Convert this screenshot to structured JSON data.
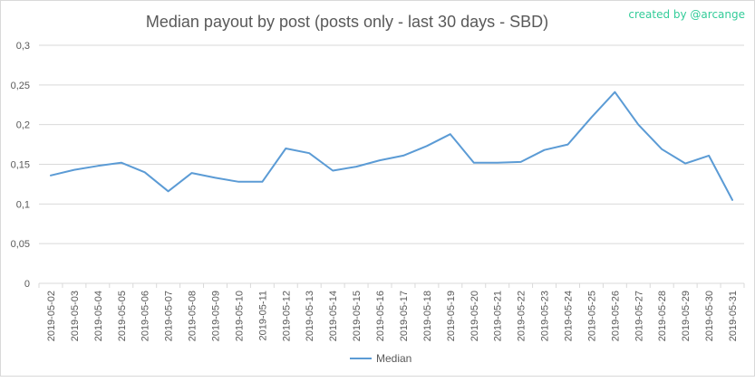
{
  "credit": "created by @arcange",
  "chart_data": {
    "type": "line",
    "title": "Median payout by post (posts only - last 30 days - SBD)",
    "xlabel": "",
    "ylabel": "",
    "ylim": [
      0,
      0.3
    ],
    "yticks": [
      0,
      0.05,
      0.1,
      0.15,
      0.2,
      0.25,
      0.3
    ],
    "ytick_labels": [
      "0",
      "0,05",
      "0,1",
      "0,15",
      "0,2",
      "0,25",
      "0,3"
    ],
    "grid": true,
    "legend_position": "bottom",
    "colors": {
      "line": "#5b9bd5",
      "grid": "#d9d9d9",
      "text": "#595959"
    },
    "x": [
      "2019-05-02",
      "2019-05-03",
      "2019-05-04",
      "2019-05-05",
      "2019-05-06",
      "2019-05-07",
      "2019-05-08",
      "2019-05-09",
      "2019-05-10",
      "2019-05-11",
      "2019-05-12",
      "2019-05-13",
      "2019-05-14",
      "2019-05-15",
      "2019-05-16",
      "2019-05-17",
      "2019-05-18",
      "2019-05-19",
      "2019-05-20",
      "2019-05-21",
      "2019-05-22",
      "2019-05-23",
      "2019-05-24",
      "2019-05-25",
      "2019-05-26",
      "2019-05-27",
      "2019-05-28",
      "2019-05-29",
      "2019-05-30",
      "2019-05-31"
    ],
    "series": [
      {
        "name": "Median",
        "values": [
          0.136,
          0.143,
          0.148,
          0.152,
          0.14,
          0.116,
          0.139,
          0.133,
          0.128,
          0.128,
          0.17,
          0.164,
          0.142,
          0.147,
          0.155,
          0.161,
          0.173,
          0.188,
          0.152,
          0.152,
          0.153,
          0.168,
          0.175,
          0.209,
          0.241,
          0.2,
          0.169,
          0.151,
          0.161,
          0.105
        ]
      }
    ]
  }
}
